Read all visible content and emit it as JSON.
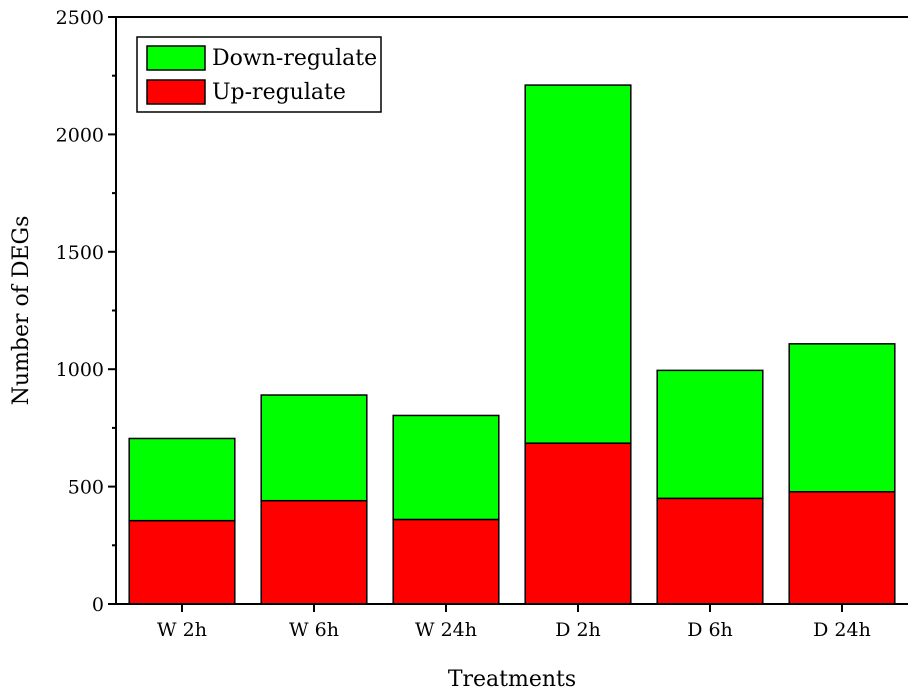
{
  "chart_data": {
    "type": "bar",
    "stacked": true,
    "categories": [
      "W 2h",
      "W 6h",
      "W 24h",
      "D 2h",
      "D 6h",
      "D 24h"
    ],
    "series": [
      {
        "name": "Up-regulate",
        "values": [
          355,
          440,
          360,
          685,
          450,
          478
        ],
        "color": "#ff0000"
      },
      {
        "name": "Down-regulate",
        "values": [
          350,
          450,
          443,
          1525,
          545,
          630
        ],
        "color": "#00ff00"
      }
    ],
    "legend": {
      "placement": "top-left",
      "items": [
        {
          "label": "Down-regulate",
          "color": "#00ff00"
        },
        {
          "label": "Up-regulate",
          "color": "#ff0000"
        }
      ]
    },
    "title": "",
    "xlabel": "Treatments",
    "ylabel": "Number of DEGs",
    "ylim": [
      0,
      2500
    ],
    "yticks": [
      0,
      500,
      1000,
      1500,
      2000,
      2500
    ],
    "ytick_labels": [
      "0",
      "500",
      "1000",
      "1500",
      "2000",
      "2500"
    ],
    "grid": false
  }
}
